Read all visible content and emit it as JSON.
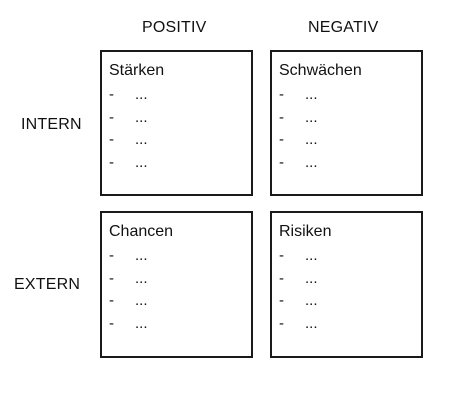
{
  "columns": {
    "positive": "POSITIV",
    "negative": "NEGATIV"
  },
  "rows": {
    "internal": "INTERN",
    "external": "EXTERN"
  },
  "quadrants": {
    "strengths": {
      "title": "Stärken",
      "items": [
        "...",
        "...",
        "...",
        "..."
      ]
    },
    "weaknesses": {
      "title": "Schwächen",
      "items": [
        "...",
        "...",
        "...",
        "..."
      ]
    },
    "opportunities": {
      "title": "Chancen",
      "items": [
        "...",
        "...",
        "...",
        "..."
      ]
    },
    "risks": {
      "title": "Risiken",
      "items": [
        "...",
        "...",
        "...",
        "..."
      ]
    }
  },
  "bullet_marker": "-"
}
